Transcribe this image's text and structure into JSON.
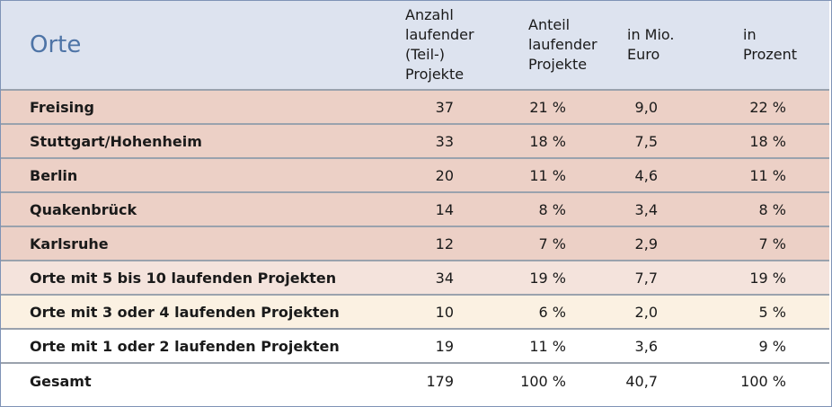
{
  "header": {
    "title": "Orte",
    "col1": [
      "Anzahl",
      "laufender",
      "(Teil-) Projekte"
    ],
    "col2": [
      "Anteil",
      "laufender",
      "Projekte"
    ],
    "col3": [
      "in Mio.",
      "Euro"
    ],
    "col4": [
      "in",
      "Prozent"
    ]
  },
  "rows": [
    {
      "label": "Freising",
      "count": "37",
      "share": "21 %",
      "mio": "9,0",
      "pct": "22 %"
    },
    {
      "label": "Stuttgart/Hohenheim",
      "count": "33",
      "share": "18 %",
      "mio": "7,5",
      "pct": "18 %"
    },
    {
      "label": "Berlin",
      "count": "20",
      "share": "11 %",
      "mio": "4,6",
      "pct": "11 %"
    },
    {
      "label": "Quakenbrück",
      "count": "14",
      "share": "8 %",
      "mio": "3,4",
      "pct": "8 %"
    },
    {
      "label": "Karlsruhe",
      "count": "12",
      "share": "7 %",
      "mio": "2,9",
      "pct": "7 %"
    },
    {
      "label": "Orte mit 5 bis 10 laufenden Projekten",
      "count": "34",
      "share": "19 %",
      "mio": "7,7",
      "pct": "19 %"
    },
    {
      "label": "Orte mit 3 oder 4 laufenden Projekten",
      "count": "10",
      "share": "6 %",
      "mio": "2,0",
      "pct": "5 %"
    },
    {
      "label": "Orte mit 1 oder 2 laufenden Projekten",
      "count": "19",
      "share": "11 %",
      "mio": "3,6",
      "pct": "9 %"
    }
  ],
  "total": {
    "label": "Gesamt",
    "count": "179",
    "share": "100 %",
    "mio": "40,7",
    "pct": "100 %"
  }
}
